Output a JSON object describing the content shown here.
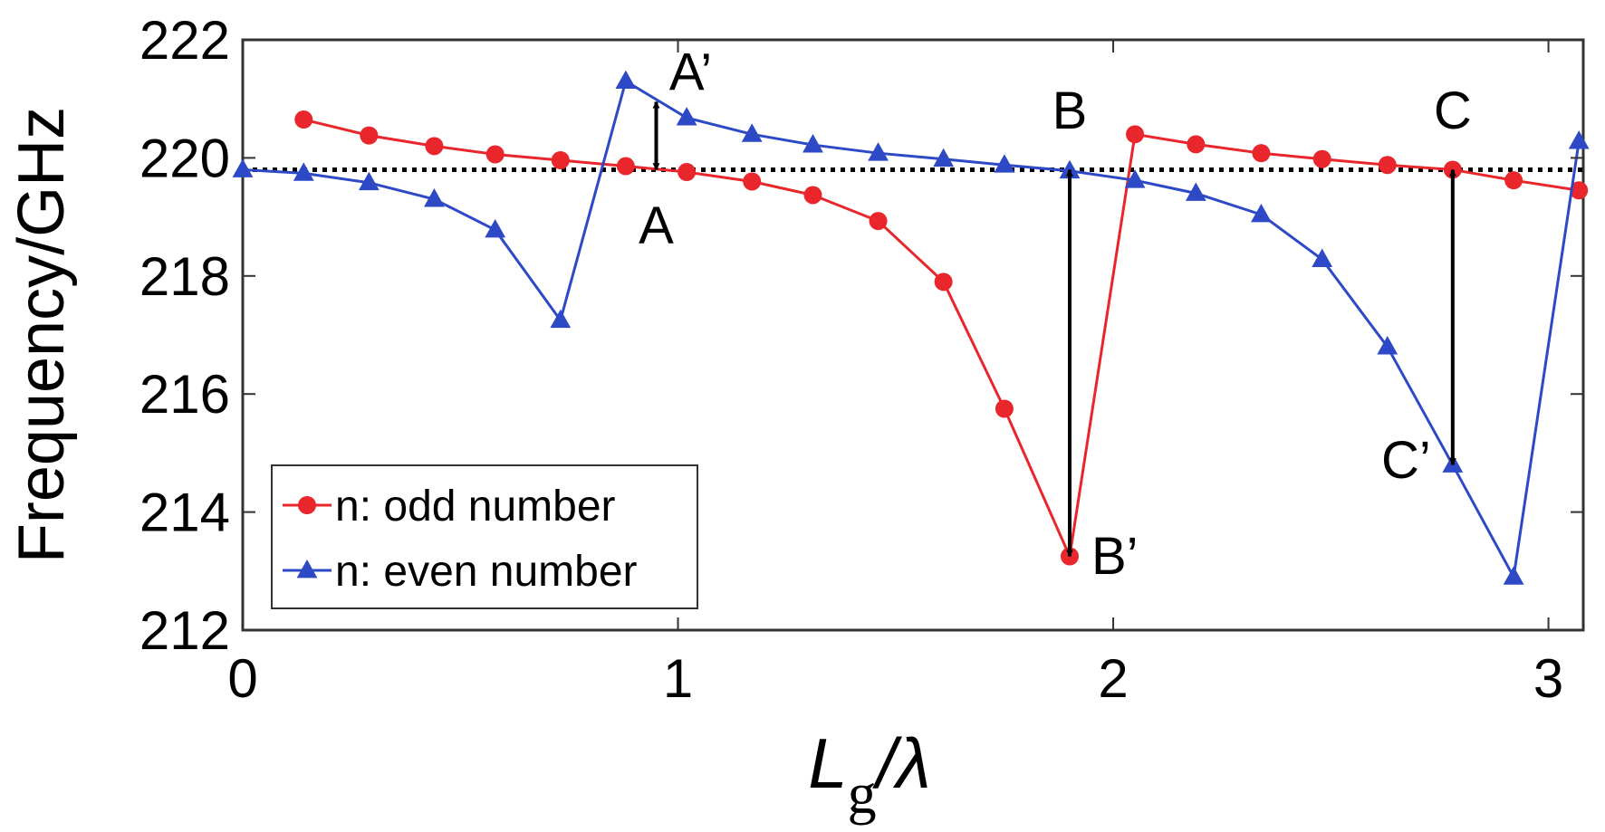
{
  "chart_data": {
    "type": "line",
    "ylabel": "Frequency/GHz",
    "xlabel": {
      "main": "L",
      "sub": "g",
      "suffix": "/λ"
    },
    "xlim": [
      0,
      3.08
    ],
    "ylim": [
      212,
      222
    ],
    "xticks": [
      0,
      1,
      2,
      3
    ],
    "yticks": [
      212,
      214,
      216,
      218,
      220,
      222
    ],
    "grid": false,
    "legend": {
      "position": "bottom-left",
      "entries": [
        "n: odd number",
        "n: even number"
      ]
    },
    "reference_line": {
      "y": 219.8,
      "style": "dotted",
      "color": "#000000"
    },
    "series": [
      {
        "name": "n: odd number",
        "color": "#e8262b",
        "marker": "circle",
        "x": [
          0.14,
          0.29,
          0.44,
          0.58,
          0.73,
          0.88,
          1.02,
          1.17,
          1.31,
          1.46,
          1.61,
          1.75,
          1.9,
          2.05,
          2.19,
          2.34,
          2.48,
          2.63,
          2.78,
          2.92,
          3.07
        ],
        "y": [
          220.65,
          220.38,
          220.2,
          220.06,
          219.96,
          219.86,
          219.76,
          219.6,
          219.37,
          218.93,
          217.9,
          215.75,
          213.25,
          220.4,
          220.23,
          220.08,
          219.98,
          219.88,
          219.8,
          219.62,
          219.45
        ]
      },
      {
        "name": "n: even number",
        "color": "#2e49c5",
        "marker": "triangle",
        "x": [
          0.0,
          0.14,
          0.29,
          0.44,
          0.58,
          0.73,
          0.88,
          1.02,
          1.17,
          1.31,
          1.46,
          1.61,
          1.75,
          1.9,
          2.05,
          2.19,
          2.34,
          2.48,
          2.63,
          2.78,
          2.92,
          3.07
        ],
        "y": [
          219.8,
          219.74,
          219.58,
          219.3,
          218.78,
          217.25,
          221.3,
          220.68,
          220.4,
          220.22,
          220.08,
          219.98,
          219.88,
          219.78,
          219.62,
          219.4,
          219.04,
          218.28,
          216.8,
          214.8,
          212.9,
          220.28
        ]
      }
    ],
    "arrows": [
      {
        "x": 0.95,
        "from": 219.8,
        "to": 220.95
      },
      {
        "x": 1.9,
        "from": 219.8,
        "to": 213.25
      },
      {
        "x": 2.78,
        "from": 219.8,
        "to": 214.8
      }
    ],
    "annotations": [
      {
        "text": "A’",
        "x": 0.98,
        "y": 221.15,
        "anchor": "start"
      },
      {
        "text": "A",
        "x": 0.95,
        "y": 218.55,
        "anchor": "middle"
      },
      {
        "text": "B",
        "x": 1.9,
        "y": 220.5,
        "anchor": "middle"
      },
      {
        "text": "B’",
        "x": 1.95,
        "y": 212.95,
        "anchor": "start"
      },
      {
        "text": "C",
        "x": 2.78,
        "y": 220.5,
        "anchor": "middle"
      },
      {
        "text": "C’",
        "x": 2.73,
        "y": 214.58,
        "anchor": "end"
      }
    ]
  }
}
